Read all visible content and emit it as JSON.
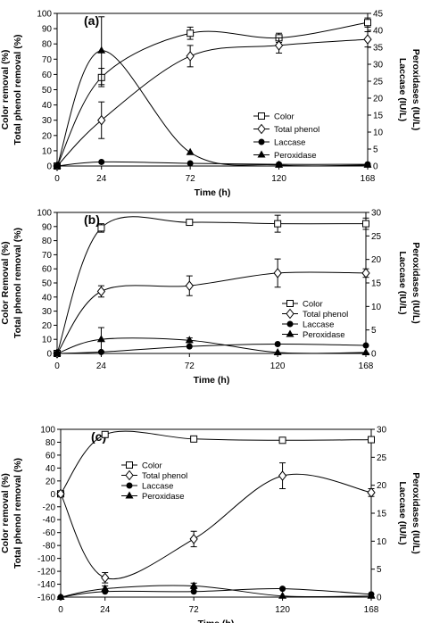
{
  "colors": {
    "ink": "#000000",
    "background": "#ffffff",
    "open_marker_fill": "#ffffff"
  },
  "chart_data": [
    {
      "type": "line",
      "panel_label": "(a)",
      "x": [
        0,
        24,
        72,
        120,
        168
      ],
      "x_ticks": [
        0,
        24,
        72,
        120,
        168
      ],
      "xlabel": "Time (h)",
      "ylabel_left": [
        "Color removal (%)",
        "Total phenol removal (%)"
      ],
      "ylabel_right": [
        "Laccase (IU/L)",
        "Peroxidases (IU/L)"
      ],
      "ylim_left": [
        0,
        100
      ],
      "yticks_left": [
        0,
        10,
        20,
        30,
        40,
        50,
        60,
        70,
        80,
        90,
        100
      ],
      "ylim_right": [
        0,
        45
      ],
      "yticks_right": [
        0,
        5,
        10,
        15,
        20,
        25,
        30,
        35,
        40,
        45
      ],
      "legend": [
        "Color",
        "Total phenol",
        "Laccase",
        "Peroxidase"
      ],
      "legend_position": "right",
      "grid": false,
      "series": [
        {
          "name": "Color",
          "axis": "left",
          "marker": "open-square",
          "values": [
            0,
            58,
            87,
            84,
            94
          ],
          "errors": [
            0,
            6,
            4,
            3,
            3
          ]
        },
        {
          "name": "Total phenol",
          "axis": "left",
          "marker": "open-diamond",
          "values": [
            0,
            30,
            72,
            79,
            83
          ],
          "errors": [
            0,
            12,
            7,
            5,
            5
          ]
        },
        {
          "name": "Laccase",
          "axis": "right",
          "marker": "filled-circle",
          "values": [
            0,
            1.2,
            0.8,
            0.5,
            0.5
          ],
          "errors": [
            0,
            0,
            0,
            0,
            0
          ]
        },
        {
          "name": "Peroxidase",
          "axis": "right",
          "marker": "filled-triangle",
          "values": [
            0,
            34,
            4,
            0.3,
            0.3
          ],
          "errors": [
            0,
            10,
            0,
            0,
            0
          ]
        }
      ]
    },
    {
      "type": "line",
      "panel_label": "(b)",
      "x": [
        0,
        24,
        72,
        120,
        168
      ],
      "x_ticks": [
        0,
        24,
        72,
        120,
        168
      ],
      "xlabel": "Time (h)",
      "ylabel_left": [
        "Color Removal (%)",
        "Total phenol removal (%)"
      ],
      "ylabel_right": [
        "Laccase (IU/L)",
        "Peroxidases (IU/L)"
      ],
      "ylim_left": [
        0,
        100
      ],
      "yticks_left": [
        0,
        10,
        20,
        30,
        40,
        50,
        60,
        70,
        80,
        90,
        100
      ],
      "ylim_right": [
        0,
        30
      ],
      "yticks_right": [
        0,
        5,
        10,
        15,
        20,
        25,
        30
      ],
      "legend": [
        "Color",
        "Total phenol",
        "Laccase",
        "Peroxidase"
      ],
      "legend_position": "lower-right",
      "grid": false,
      "series": [
        {
          "name": "Color",
          "axis": "left",
          "marker": "open-square",
          "values": [
            0,
            89,
            93,
            92,
            92
          ],
          "errors": [
            0,
            3,
            1,
            6,
            4
          ]
        },
        {
          "name": "Total phenol",
          "axis": "left",
          "marker": "open-diamond",
          "values": [
            0,
            44,
            48,
            57,
            57
          ],
          "errors": [
            0,
            4,
            7,
            10,
            3
          ]
        },
        {
          "name": "Laccase",
          "axis": "right",
          "marker": "filled-circle",
          "values": [
            0,
            0.3,
            1.5,
            2.0,
            1.7
          ],
          "errors": [
            0,
            0,
            0,
            0,
            0
          ]
        },
        {
          "name": "Peroxidase",
          "axis": "right",
          "marker": "filled-triangle",
          "values": [
            0,
            3.0,
            2.8,
            0.2,
            0.2
          ],
          "errors": [
            0,
            2.5,
            0.5,
            0,
            0
          ]
        }
      ]
    },
    {
      "type": "line",
      "panel_label": "(c)",
      "x": [
        0,
        24,
        72,
        120,
        168
      ],
      "x_ticks": [
        0,
        24,
        72,
        120,
        168
      ],
      "xlabel": "Time (h)",
      "ylabel_left": [
        "Color removal (%)",
        "Total phenol removal (%)"
      ],
      "ylabel_right": [
        "Laccase (IU/L)",
        "Peroxidases (IU/L)"
      ],
      "ylim_left": [
        -160,
        100
      ],
      "yticks_left": [
        -160,
        -140,
        -120,
        -100,
        -80,
        -60,
        -40,
        -20,
        0,
        20,
        40,
        60,
        80,
        100
      ],
      "ylim_right": [
        0,
        30
      ],
      "yticks_right": [
        0,
        5,
        10,
        15,
        20,
        25,
        30
      ],
      "legend": [
        "Color",
        "Total phenol",
        "Laccase",
        "Peroxidase"
      ],
      "legend_position": "upper-left",
      "grid": false,
      "series": [
        {
          "name": "Color",
          "axis": "left",
          "marker": "open-square",
          "values": [
            0,
            92,
            85,
            83,
            84
          ],
          "errors": [
            0,
            3,
            2,
            2,
            2
          ]
        },
        {
          "name": "Total phenol",
          "axis": "left",
          "marker": "open-diamond",
          "values": [
            0,
            -130,
            -70,
            28,
            2
          ],
          "errors": [
            0,
            8,
            12,
            20,
            6
          ]
        },
        {
          "name": "Laccase",
          "axis": "right",
          "marker": "filled-circle",
          "values": [
            0,
            1.0,
            1.0,
            1.5,
            0.5
          ],
          "errors": [
            0,
            0,
            0,
            0,
            0
          ]
        },
        {
          "name": "Peroxidase",
          "axis": "right",
          "marker": "filled-triangle",
          "values": [
            0,
            1.5,
            2.0,
            0.2,
            0.2
          ],
          "errors": [
            0,
            0.5,
            0.5,
            0,
            0
          ]
        }
      ]
    }
  ]
}
